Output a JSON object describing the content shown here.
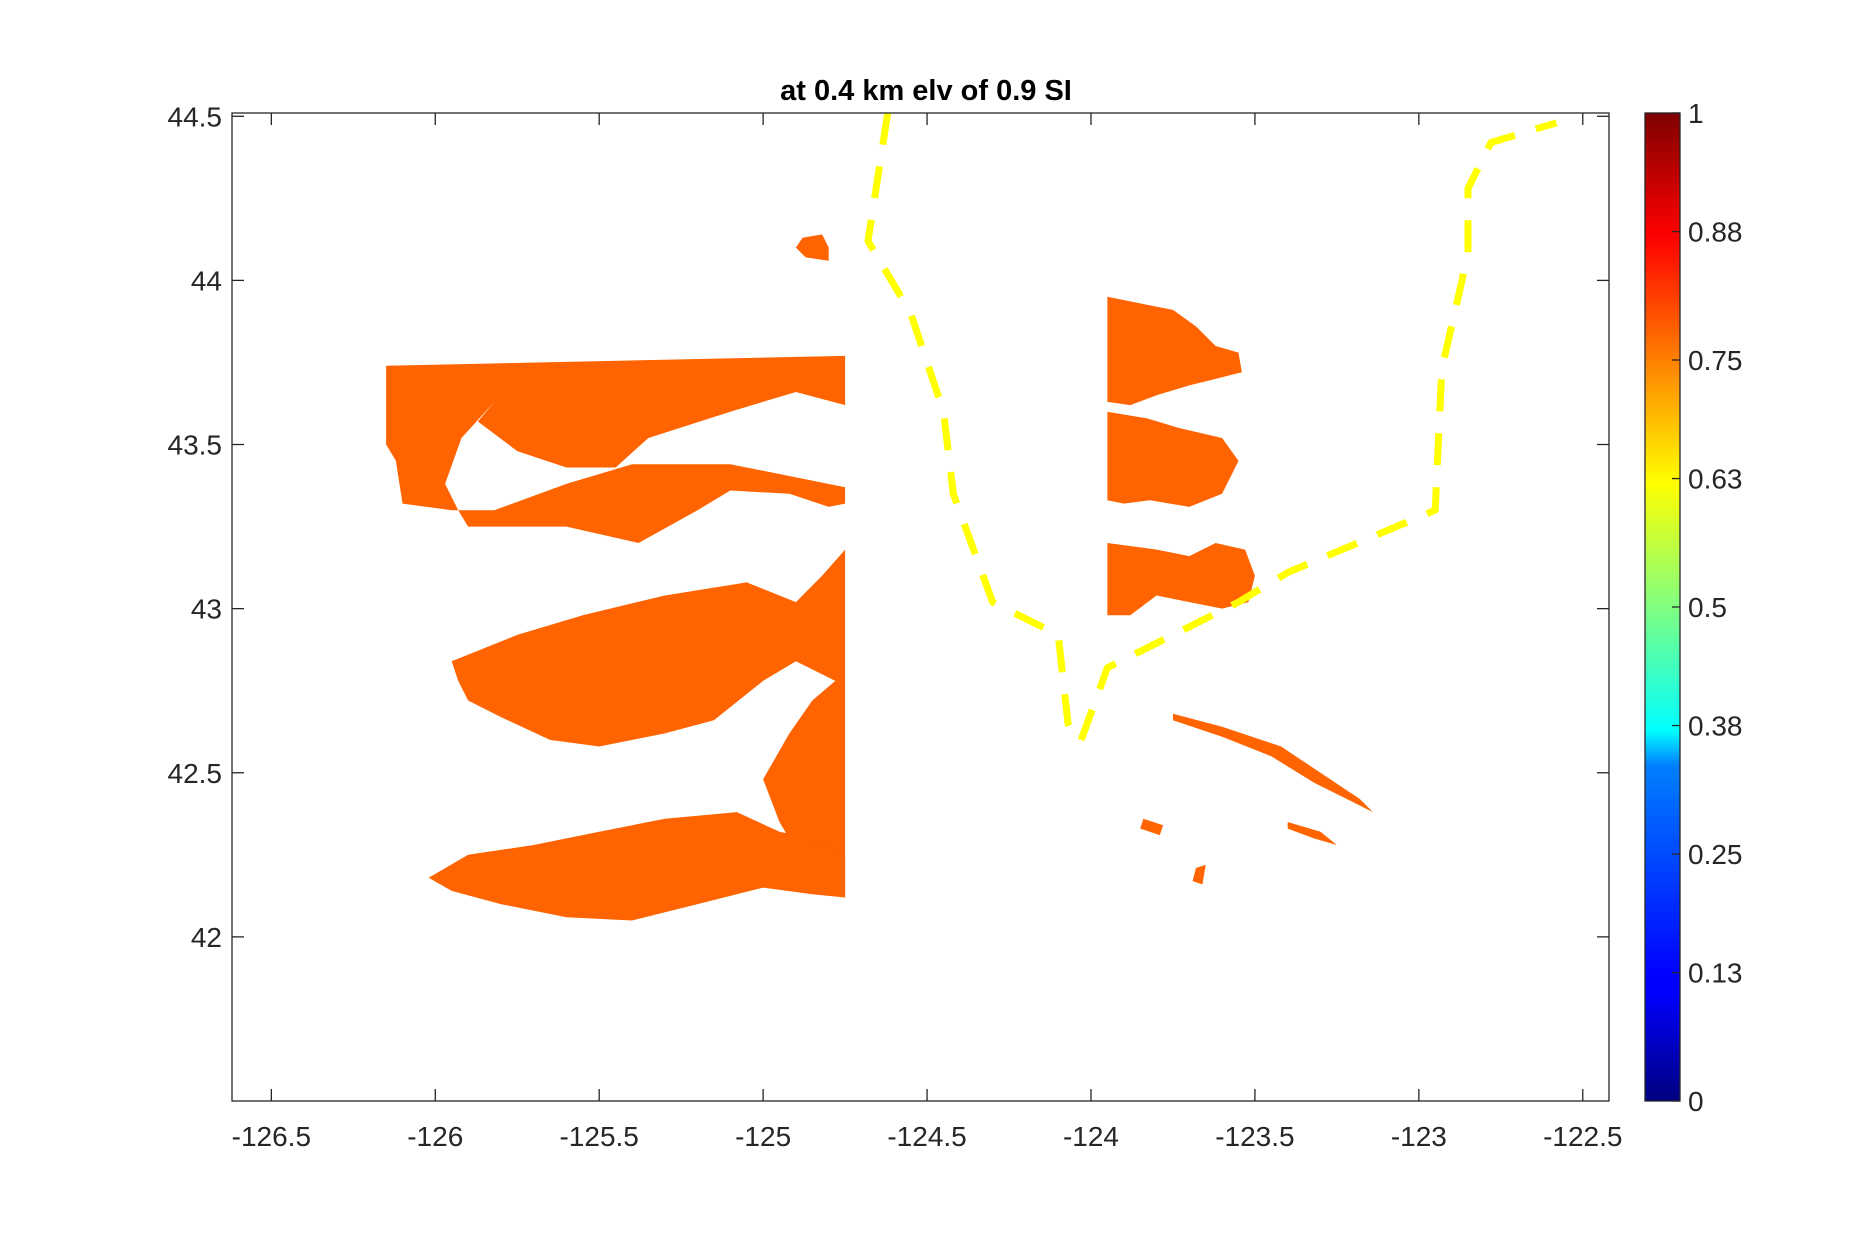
{
  "chart_data": {
    "type": "heatmap",
    "title": "at 0.4 km elv of 0.9 SI",
    "xlabel": "",
    "ylabel": "",
    "xlim": [
      -126.62,
      -122.42
    ],
    "ylim": [
      41.5,
      44.51
    ],
    "xticks": [
      -126.5,
      -126,
      -125.5,
      -125,
      -124.5,
      -124,
      -123.5,
      -123,
      -122.5
    ],
    "xtick_labels": [
      "-126.5",
      "-126",
      "-125.5",
      "-125",
      "-124.5",
      "-124",
      "-123.5",
      "-123",
      "-122.5"
    ],
    "yticks": [
      42,
      42.5,
      43,
      43.5,
      44,
      44.5
    ],
    "ytick_labels": [
      "42",
      "42.5",
      "43",
      "43.5",
      "44",
      "44.5"
    ],
    "grid": false,
    "colorbar": {
      "colormap": "jet",
      "limits": [
        0,
        1
      ],
      "ticks": [
        0,
        0.13,
        0.25,
        0.38,
        0.5,
        0.63,
        0.75,
        0.88,
        1
      ],
      "tick_labels": [
        "0",
        "0.13",
        "0.25",
        "0.38",
        "0.5",
        "0.63",
        "0.75",
        "0.88",
        "1"
      ]
    },
    "field_value": 0.8,
    "field_color": "#ff6400",
    "regions": [
      {
        "name": "offshore-upper",
        "polygon": [
          [
            -126.15,
            43.74
          ],
          [
            -124.75,
            43.77
          ],
          [
            -124.75,
            43.62
          ],
          [
            -124.9,
            43.66
          ],
          [
            -125.1,
            43.6
          ],
          [
            -125.35,
            43.52
          ],
          [
            -125.45,
            43.43
          ],
          [
            -125.6,
            43.43
          ],
          [
            -125.75,
            43.48
          ],
          [
            -125.87,
            43.57
          ],
          [
            -125.82,
            43.63
          ],
          [
            -125.92,
            43.52
          ],
          [
            -125.97,
            43.38
          ],
          [
            -125.93,
            43.3
          ],
          [
            -125.9,
            43.25
          ],
          [
            -125.6,
            43.25
          ],
          [
            -125.38,
            43.2
          ],
          [
            -125.2,
            43.3
          ],
          [
            -125.1,
            43.36
          ],
          [
            -124.92,
            43.35
          ],
          [
            -124.8,
            43.31
          ],
          [
            -124.75,
            43.32
          ],
          [
            -124.75,
            43.37
          ],
          [
            -125.1,
            43.44
          ],
          [
            -125.4,
            43.44
          ],
          [
            -125.6,
            43.38
          ],
          [
            -125.82,
            43.3
          ],
          [
            -125.95,
            43.3
          ],
          [
            -126.1,
            43.32
          ],
          [
            -126.12,
            43.45
          ],
          [
            -126.15,
            43.5
          ]
        ]
      },
      {
        "name": "offshore-middle",
        "polygon": [
          [
            -125.95,
            42.84
          ],
          [
            -125.75,
            42.92
          ],
          [
            -125.55,
            42.98
          ],
          [
            -125.3,
            43.04
          ],
          [
            -125.05,
            43.08
          ],
          [
            -124.9,
            43.02
          ],
          [
            -124.82,
            43.1
          ],
          [
            -124.75,
            43.18
          ],
          [
            -124.75,
            42.12
          ],
          [
            -124.85,
            42.18
          ],
          [
            -124.95,
            42.35
          ],
          [
            -125.0,
            42.48
          ],
          [
            -124.92,
            42.62
          ],
          [
            -124.85,
            42.72
          ],
          [
            -124.78,
            42.78
          ],
          [
            -124.9,
            42.84
          ],
          [
            -125.0,
            42.78
          ],
          [
            -125.15,
            42.66
          ],
          [
            -125.3,
            42.62
          ],
          [
            -125.5,
            42.58
          ],
          [
            -125.65,
            42.6
          ],
          [
            -125.8,
            42.67
          ],
          [
            -125.9,
            42.72
          ],
          [
            -125.93,
            42.78
          ]
        ]
      },
      {
        "name": "offshore-lower",
        "polygon": [
          [
            -126.02,
            42.18
          ],
          [
            -125.9,
            42.25
          ],
          [
            -125.7,
            42.28
          ],
          [
            -125.5,
            42.32
          ],
          [
            -125.3,
            42.36
          ],
          [
            -125.08,
            42.38
          ],
          [
            -124.95,
            42.32
          ],
          [
            -124.85,
            42.3
          ],
          [
            -124.75,
            42.24
          ],
          [
            -124.75,
            42.12
          ],
          [
            -124.85,
            42.13
          ],
          [
            -125.0,
            42.15
          ],
          [
            -125.2,
            42.1
          ],
          [
            -125.4,
            42.05
          ],
          [
            -125.6,
            42.06
          ],
          [
            -125.8,
            42.1
          ],
          [
            -125.95,
            42.14
          ]
        ]
      },
      {
        "name": "islet-1",
        "polygon": [
          [
            -124.88,
            44.13
          ],
          [
            -124.82,
            44.14
          ],
          [
            -124.8,
            44.1
          ],
          [
            -124.8,
            44.06
          ],
          [
            -124.87,
            44.07
          ],
          [
            -124.9,
            44.1
          ]
        ]
      },
      {
        "name": "inland-upper",
        "polygon": [
          [
            -123.95,
            43.95
          ],
          [
            -123.85,
            43.93
          ],
          [
            -123.75,
            43.91
          ],
          [
            -123.68,
            43.86
          ],
          [
            -123.62,
            43.8
          ],
          [
            -123.55,
            43.78
          ],
          [
            -123.54,
            43.72
          ],
          [
            -123.62,
            43.7
          ],
          [
            -123.7,
            43.68
          ],
          [
            -123.8,
            43.65
          ],
          [
            -123.88,
            43.62
          ],
          [
            -123.95,
            43.63
          ]
        ]
      },
      {
        "name": "inland-middle",
        "polygon": [
          [
            -123.95,
            43.6
          ],
          [
            -123.83,
            43.58
          ],
          [
            -123.73,
            43.55
          ],
          [
            -123.6,
            43.52
          ],
          [
            -123.55,
            43.45
          ],
          [
            -123.6,
            43.35
          ],
          [
            -123.7,
            43.31
          ],
          [
            -123.82,
            43.33
          ],
          [
            -123.9,
            43.32
          ],
          [
            -123.95,
            43.33
          ]
        ]
      },
      {
        "name": "inland-lower",
        "polygon": [
          [
            -123.95,
            43.2
          ],
          [
            -123.8,
            43.18
          ],
          [
            -123.7,
            43.16
          ],
          [
            -123.62,
            43.2
          ],
          [
            -123.53,
            43.18
          ],
          [
            -123.5,
            43.1
          ],
          [
            -123.52,
            43.02
          ],
          [
            -123.6,
            43.0
          ],
          [
            -123.7,
            43.02
          ],
          [
            -123.8,
            43.04
          ],
          [
            -123.88,
            42.98
          ],
          [
            -123.95,
            42.98
          ]
        ]
      },
      {
        "name": "river-1",
        "polygon": [
          [
            -123.75,
            42.68
          ],
          [
            -123.6,
            42.64
          ],
          [
            -123.42,
            42.58
          ],
          [
            -123.3,
            42.5
          ],
          [
            -123.18,
            42.42
          ],
          [
            -123.14,
            42.38
          ],
          [
            -123.2,
            42.41
          ],
          [
            -123.32,
            42.47
          ],
          [
            -123.45,
            42.55
          ],
          [
            -123.6,
            42.61
          ],
          [
            -123.75,
            42.66
          ]
        ]
      },
      {
        "name": "river-2",
        "polygon": [
          [
            -123.4,
            42.35
          ],
          [
            -123.3,
            42.32
          ],
          [
            -123.25,
            42.28
          ],
          [
            -123.32,
            42.3
          ],
          [
            -123.4,
            42.33
          ]
        ]
      },
      {
        "name": "speck-1",
        "polygon": [
          [
            -123.68,
            42.21
          ],
          [
            -123.65,
            42.22
          ],
          [
            -123.66,
            42.16
          ],
          [
            -123.69,
            42.17
          ]
        ]
      },
      {
        "name": "speck-2",
        "polygon": [
          [
            -123.84,
            42.36
          ],
          [
            -123.78,
            42.34
          ],
          [
            -123.79,
            42.31
          ],
          [
            -123.85,
            42.33
          ]
        ]
      }
    ],
    "overlays": [
      {
        "name": "border-west",
        "style": "dashed",
        "color": "#ffff00",
        "points": [
          [
            -124.62,
            44.51
          ],
          [
            -124.68,
            44.12
          ],
          [
            -124.55,
            43.9
          ],
          [
            -124.45,
            43.6
          ],
          [
            -124.42,
            43.35
          ],
          [
            -124.3,
            43.02
          ],
          [
            -124.1,
            42.92
          ],
          [
            -124.07,
            42.65
          ],
          [
            -124.05,
            42.6
          ]
        ]
      },
      {
        "name": "border-east",
        "style": "dashed",
        "color": "#ffff00",
        "points": [
          [
            -124.03,
            42.6
          ],
          [
            -123.95,
            42.82
          ],
          [
            -123.75,
            42.92
          ],
          [
            -123.55,
            43.02
          ],
          [
            -123.4,
            43.11
          ],
          [
            -122.95,
            43.3
          ],
          [
            -122.93,
            43.73
          ],
          [
            -122.85,
            44.08
          ],
          [
            -122.85,
            44.28
          ],
          [
            -122.78,
            44.42
          ],
          [
            -122.58,
            44.48
          ]
        ]
      }
    ]
  }
}
